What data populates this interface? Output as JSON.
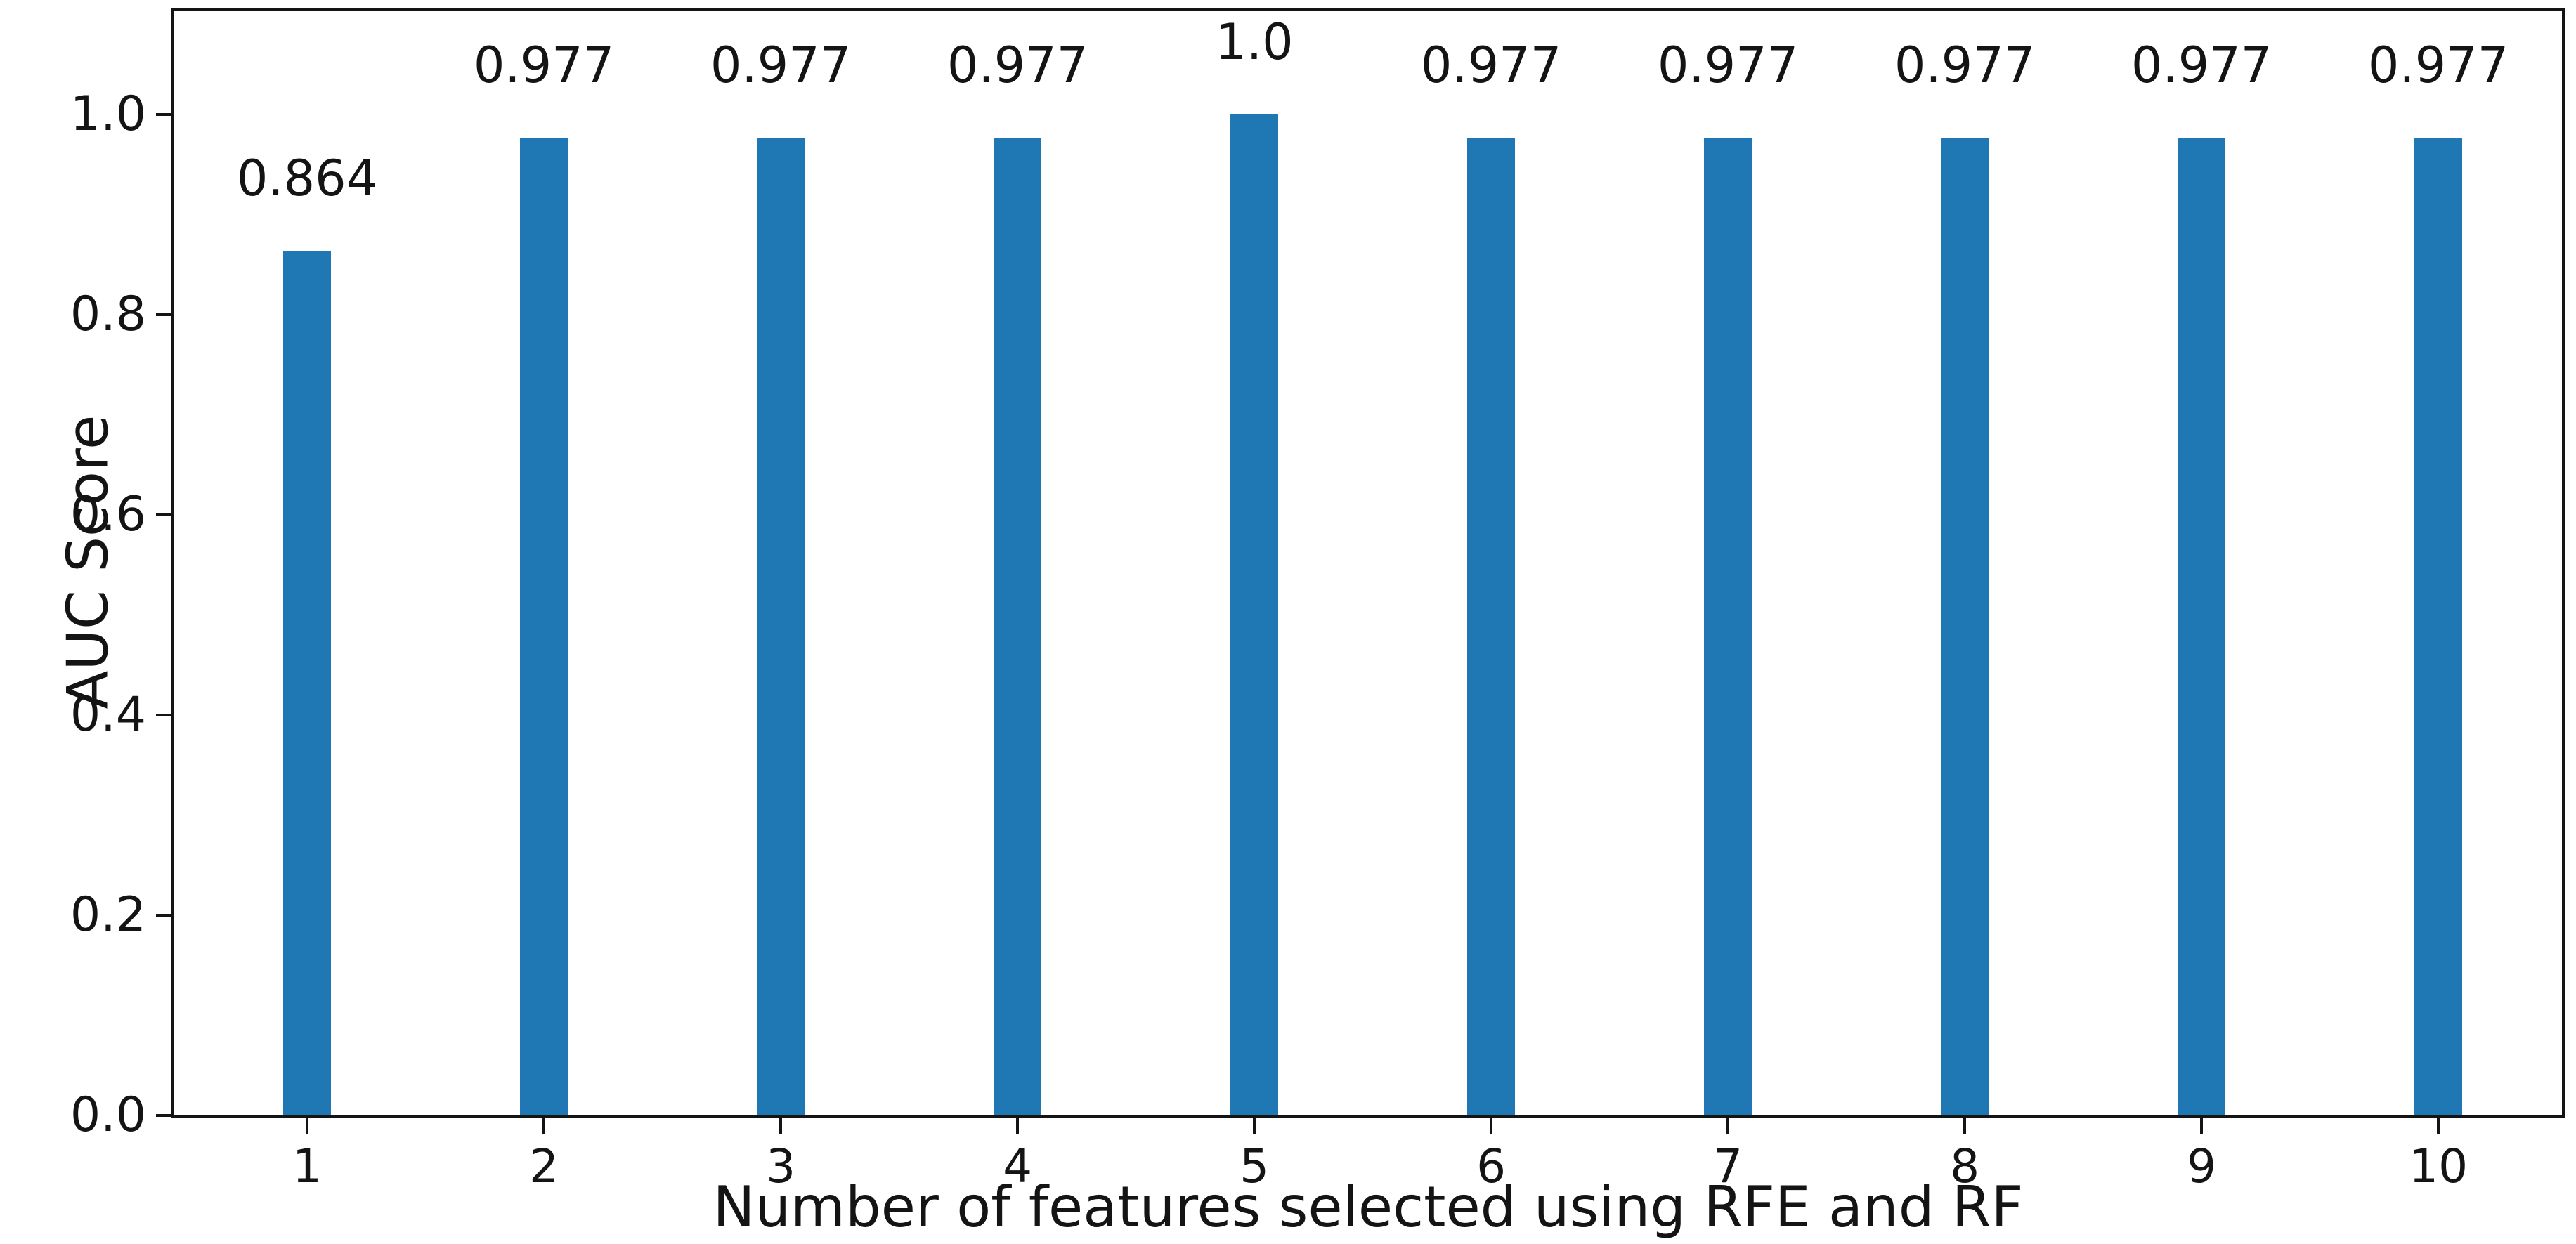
{
  "figure": {
    "background": "#ffffff"
  },
  "chart_data": {
    "type": "bar",
    "title": "",
    "xlabel": "Number of features selected using RFE and RF",
    "ylabel": "AUC Score",
    "categories": [
      "1",
      "2",
      "3",
      "4",
      "5",
      "6",
      "7",
      "8",
      "9",
      "10"
    ],
    "values": [
      0.864,
      0.977,
      0.977,
      0.977,
      1.0,
      0.977,
      0.977,
      0.977,
      0.977,
      0.977
    ],
    "bar_value_labels": [
      "0.864",
      "0.977",
      "0.977",
      "0.977",
      "1.0",
      "0.977",
      "0.977",
      "0.977",
      "0.977",
      "0.977"
    ],
    "yticks": [
      0.0,
      0.2,
      0.4,
      0.6,
      0.8,
      1.0
    ],
    "ytick_labels": [
      "0.0",
      "0.2",
      "0.4",
      "0.6",
      "0.8",
      "1.0"
    ],
    "ylim": [
      0,
      1.104
    ],
    "xlim": [
      0.439,
      10.522
    ],
    "bar_width": 0.2,
    "bar_color": "#1f77b4",
    "axis_color": "#141414",
    "grid": false,
    "legend": "none"
  }
}
